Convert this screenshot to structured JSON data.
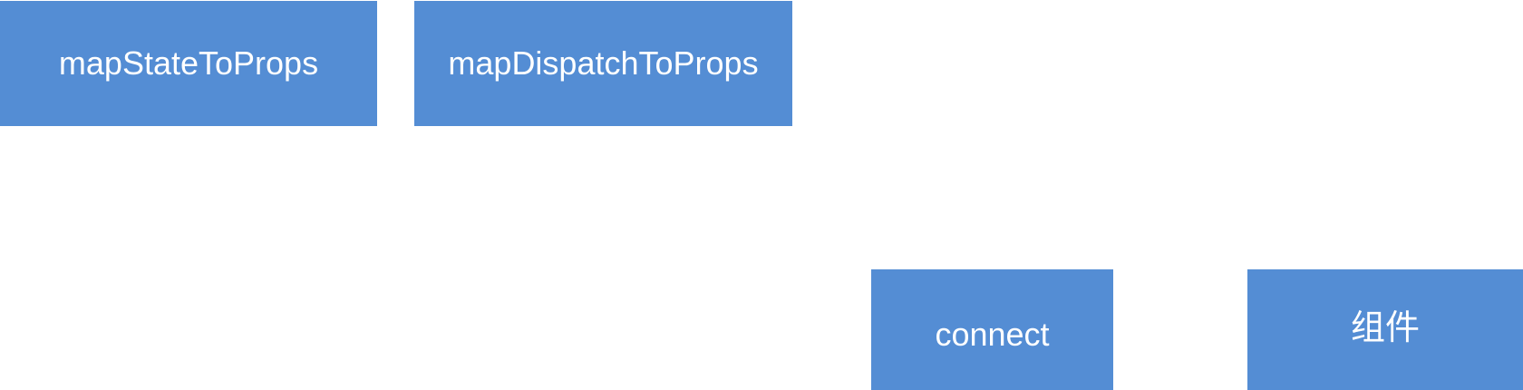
{
  "colors": {
    "box_fill": "#548dd4",
    "text": "#ffffff",
    "background": "#ffffff"
  },
  "nodes": {
    "map_state_to_props": "mapStateToProps",
    "map_dispatch_to_props": "mapDispatchToProps",
    "connect": "connect",
    "component": "组件"
  }
}
